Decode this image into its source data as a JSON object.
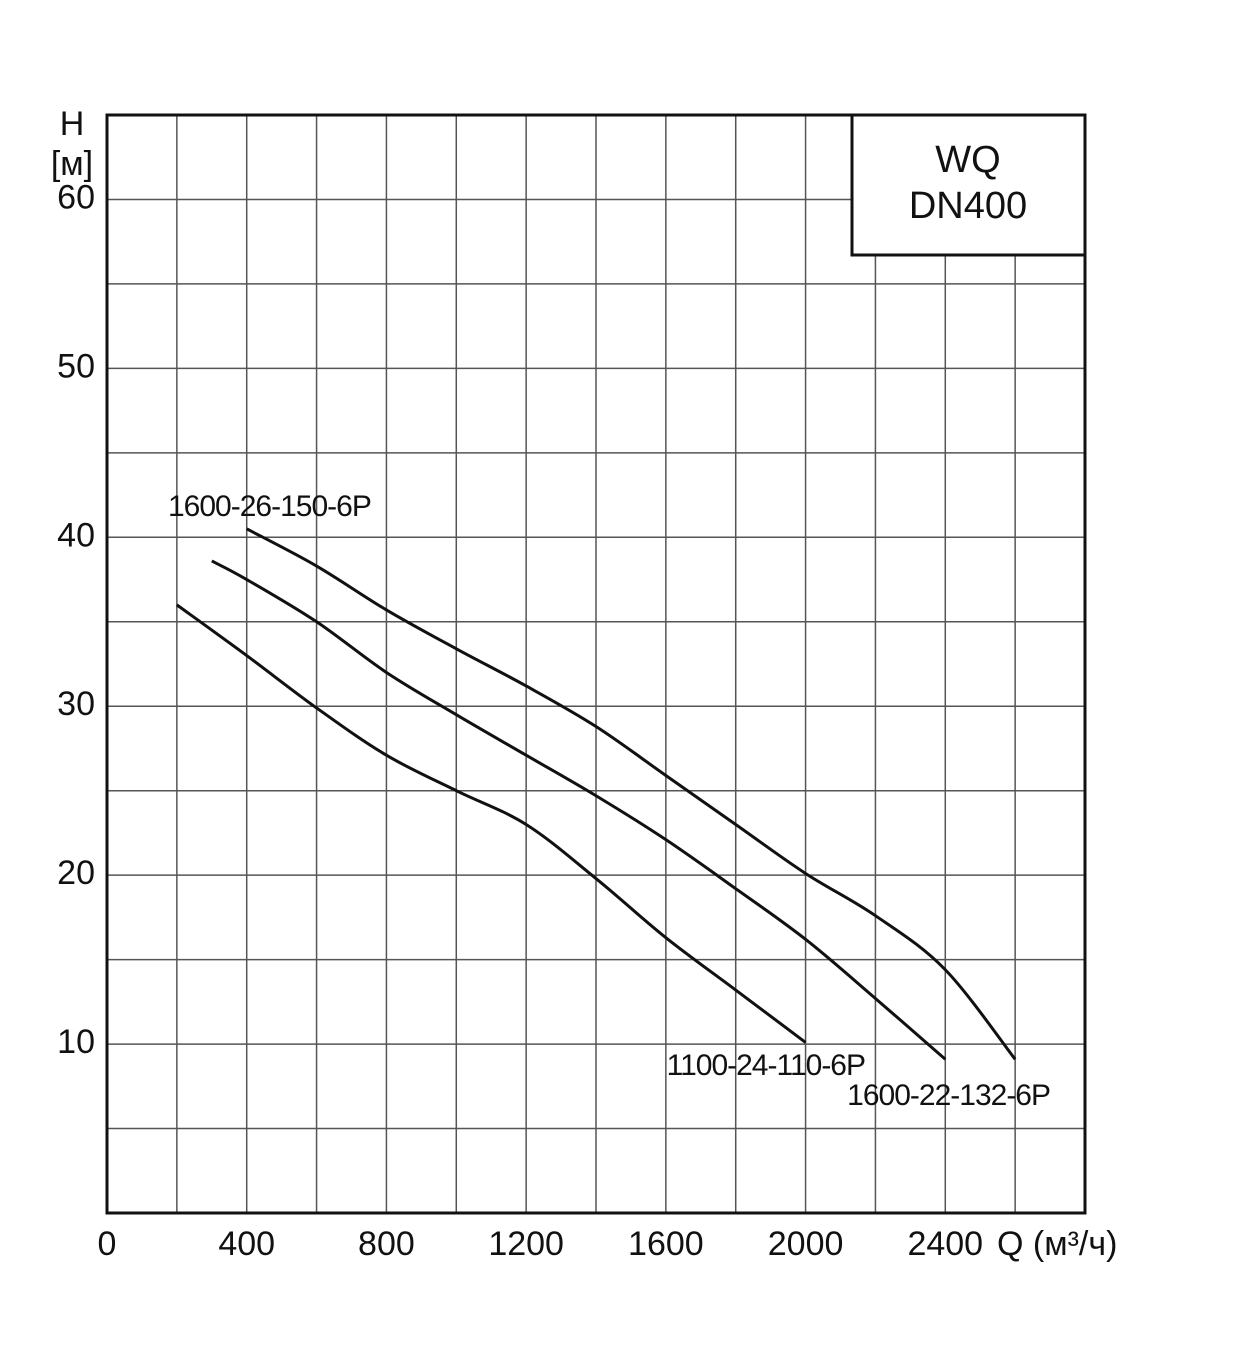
{
  "chart_data": {
    "type": "line",
    "ylabel": "H",
    "ylabel_unit": "[м]",
    "xlabel": "Q (м³/ч)",
    "annotation": [
      "WQ",
      "DN400"
    ],
    "xlim": [
      0,
      2800
    ],
    "ylim": [
      0,
      65
    ],
    "xticks": [
      0,
      400,
      800,
      1200,
      1600,
      2000,
      2400
    ],
    "yticks": [
      10,
      20,
      30,
      40,
      50,
      60
    ],
    "x_gridlines": [
      200,
      400,
      600,
      800,
      1000,
      1200,
      1400,
      1600,
      1800,
      2000,
      2200,
      2400,
      2600
    ],
    "y_gridlines": [
      5,
      10,
      15,
      20,
      25,
      30,
      35,
      40,
      45,
      50,
      55,
      60
    ],
    "grid": true,
    "series": [
      {
        "name": "1600-26-150-6P",
        "color": "#111111",
        "x": [
          400,
          600,
          800,
          1000,
          1200,
          1400,
          1600,
          1800,
          2000,
          2200,
          2400,
          2600
        ],
        "values": [
          40.5,
          38.3,
          35.7,
          33.4,
          31.2,
          28.8,
          25.9,
          23.0,
          20.1,
          17.6,
          14.4,
          9.1
        ]
      },
      {
        "name": "1600-22-132-6P",
        "color": "#111111",
        "x": [
          300,
          400,
          600,
          800,
          1000,
          1200,
          1400,
          1600,
          1800,
          2000,
          2200,
          2400
        ],
        "values": [
          38.6,
          37.5,
          35.0,
          32.0,
          29.5,
          27.1,
          24.7,
          22.1,
          19.2,
          16.2,
          12.7,
          9.1
        ]
      },
      {
        "name": "1100-24-110-6P",
        "color": "#111111",
        "x": [
          200,
          400,
          600,
          800,
          1000,
          1200,
          1400,
          1600,
          1800,
          2000
        ],
        "values": [
          36.0,
          33.0,
          29.9,
          27.1,
          25.0,
          23.0,
          19.8,
          16.3,
          13.2,
          10.1
        ]
      }
    ]
  }
}
